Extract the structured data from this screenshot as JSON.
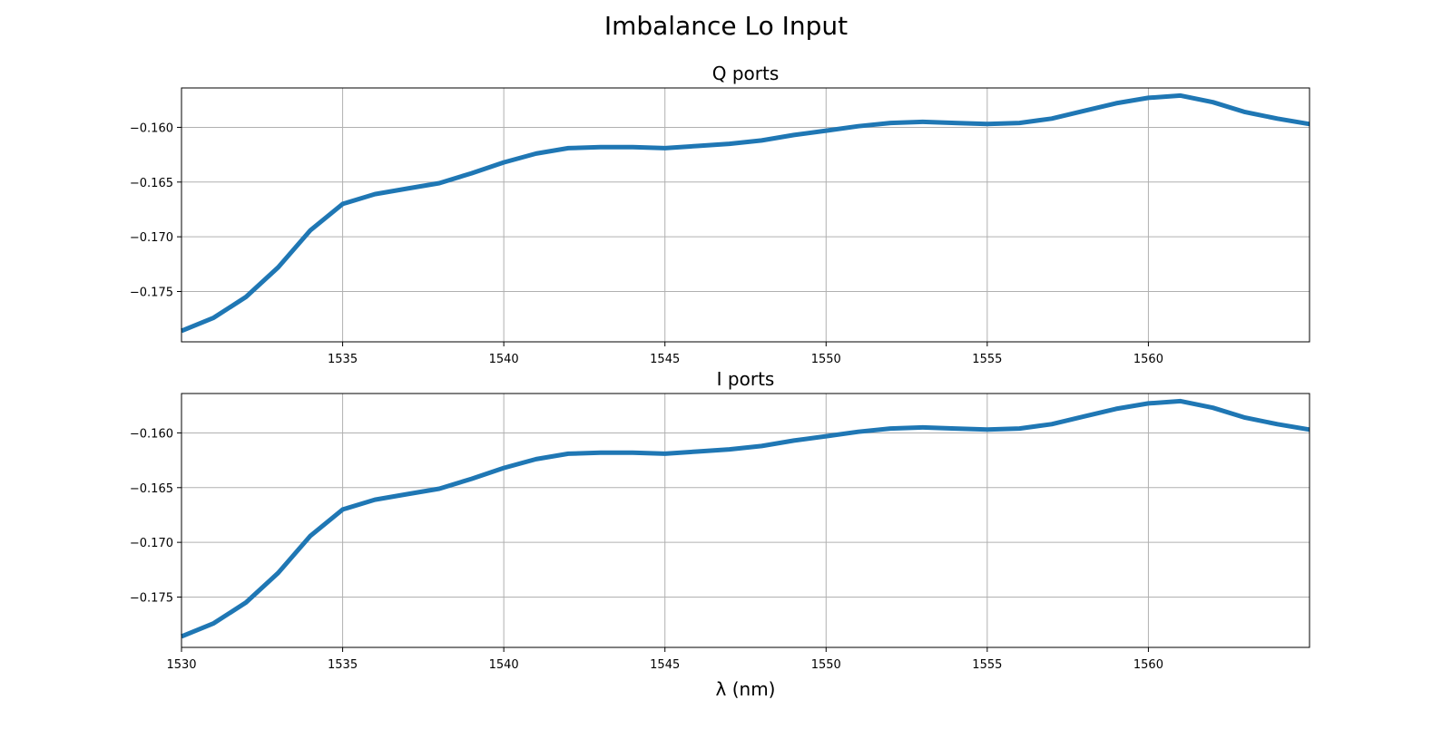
{
  "figure": {
    "suptitle": "Imbalance Lo Input"
  },
  "chart_data": [
    {
      "type": "line",
      "title": "Q ports",
      "xlabel": "",
      "ylabel": "",
      "xlim": [
        1530,
        1565
      ],
      "ylim": [
        -0.1796,
        -0.1564
      ],
      "grid": true,
      "xticks": [
        1535,
        1540,
        1545,
        1550,
        1555,
        1560
      ],
      "xtick_labels": [
        "1535",
        "1540",
        "1545",
        "1550",
        "1555",
        "1560"
      ],
      "yticks": [
        -0.16,
        -0.165,
        -0.17,
        -0.175
      ],
      "ytick_labels": [
        "−0.160",
        "−0.165",
        "−0.170",
        "−0.175"
      ],
      "series": [
        {
          "color": "#1f77b4",
          "x": [
            1530,
            1531,
            1532,
            1533,
            1534,
            1535,
            1536,
            1537,
            1538,
            1539,
            1540,
            1541,
            1542,
            1543,
            1544,
            1545,
            1546,
            1547,
            1548,
            1549,
            1550,
            1551,
            1552,
            1553,
            1554,
            1555,
            1556,
            1557,
            1558,
            1559,
            1560,
            1561,
            1562,
            1563,
            1564,
            1565
          ],
          "y": [
            -0.1786,
            -0.1774,
            -0.1755,
            -0.1728,
            -0.1694,
            -0.167,
            -0.1661,
            -0.1656,
            -0.1651,
            -0.1642,
            -0.1632,
            -0.1624,
            -0.1619,
            -0.1618,
            -0.1618,
            -0.1619,
            -0.1617,
            -0.1615,
            -0.1612,
            -0.1607,
            -0.1603,
            -0.1599,
            -0.1596,
            -0.1595,
            -0.1596,
            -0.1597,
            -0.1596,
            -0.1592,
            -0.1585,
            -0.1578,
            -0.1573,
            -0.1571,
            -0.1577,
            -0.1586,
            -0.1592,
            -0.1597
          ]
        }
      ]
    },
    {
      "type": "line",
      "title": "I ports",
      "xlabel": "λ (nm)",
      "ylabel": "",
      "xlim": [
        1530,
        1565
      ],
      "ylim": [
        -0.1796,
        -0.1564
      ],
      "grid": true,
      "xticks": [
        1530,
        1535,
        1540,
        1545,
        1550,
        1555,
        1560
      ],
      "xtick_labels": [
        "1530",
        "1535",
        "1540",
        "1545",
        "1550",
        "1555",
        "1560"
      ],
      "yticks": [
        -0.16,
        -0.165,
        -0.17,
        -0.175
      ],
      "ytick_labels": [
        "−0.160",
        "−0.165",
        "−0.170",
        "−0.175"
      ],
      "series": [
        {
          "color": "#1f77b4",
          "x": [
            1530,
            1531,
            1532,
            1533,
            1534,
            1535,
            1536,
            1537,
            1538,
            1539,
            1540,
            1541,
            1542,
            1543,
            1544,
            1545,
            1546,
            1547,
            1548,
            1549,
            1550,
            1551,
            1552,
            1553,
            1554,
            1555,
            1556,
            1557,
            1558,
            1559,
            1560,
            1561,
            1562,
            1563,
            1564,
            1565
          ],
          "y": [
            -0.1786,
            -0.1774,
            -0.1755,
            -0.1728,
            -0.1694,
            -0.167,
            -0.1661,
            -0.1656,
            -0.1651,
            -0.1642,
            -0.1632,
            -0.1624,
            -0.1619,
            -0.1618,
            -0.1618,
            -0.1619,
            -0.1617,
            -0.1615,
            -0.1612,
            -0.1607,
            -0.1603,
            -0.1599,
            -0.1596,
            -0.1595,
            -0.1596,
            -0.1597,
            -0.1596,
            -0.1592,
            -0.1585,
            -0.1578,
            -0.1573,
            -0.1571,
            -0.1577,
            -0.1586,
            -0.1592,
            -0.1597
          ]
        }
      ]
    }
  ]
}
